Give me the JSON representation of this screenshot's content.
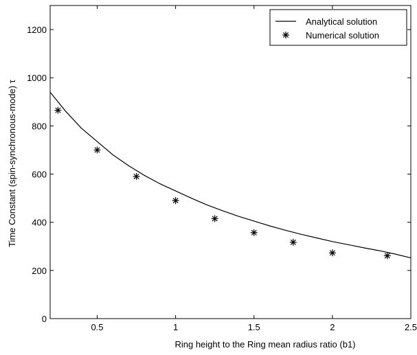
{
  "chart_data": {
    "type": "line",
    "xlabel": "Ring height to the Ring mean radius ratio (b1)",
    "ylabel": "Time Constant (spin-synchronous-mode)  τ",
    "xlim": [
      0.2,
      2.5
    ],
    "ylim": [
      0,
      1300
    ],
    "xticks": [
      0.5,
      1,
      1.5,
      2,
      2.5
    ],
    "xtick_labels": [
      "0.5",
      "1",
      "1.5",
      "2",
      "2.5"
    ],
    "yticks": [
      0,
      200,
      400,
      600,
      800,
      1000,
      1200
    ],
    "ytick_labels": [
      "0",
      "200",
      "400",
      "600",
      "800",
      "1000",
      "1200"
    ],
    "grid": false,
    "legend_position": "top-right",
    "series": [
      {
        "name": "Analytical solution",
        "style": "line",
        "color": "#000000",
        "x": [
          0.2,
          0.3,
          0.4,
          0.5,
          0.6,
          0.7,
          0.8,
          0.9,
          1.0,
          1.1,
          1.2,
          1.3,
          1.4,
          1.5,
          1.6,
          1.7,
          1.8,
          1.9,
          2.0,
          2.1,
          2.2,
          2.3,
          2.4,
          2.5
        ],
        "y": [
          940,
          860,
          790,
          735,
          680,
          635,
          595,
          560,
          530,
          500,
          472,
          448,
          425,
          405,
          385,
          367,
          350,
          335,
          320,
          307,
          294,
          282,
          268,
          252
        ]
      },
      {
        "name": "Numerical solution",
        "style": "marker",
        "marker": "asterisk",
        "color": "#000000",
        "x": [
          0.25,
          0.5,
          0.75,
          1.0,
          1.25,
          1.5,
          1.75,
          2.0,
          2.35
        ],
        "y": [
          865,
          700,
          590,
          490,
          415,
          357,
          317,
          273,
          261
        ]
      }
    ]
  }
}
